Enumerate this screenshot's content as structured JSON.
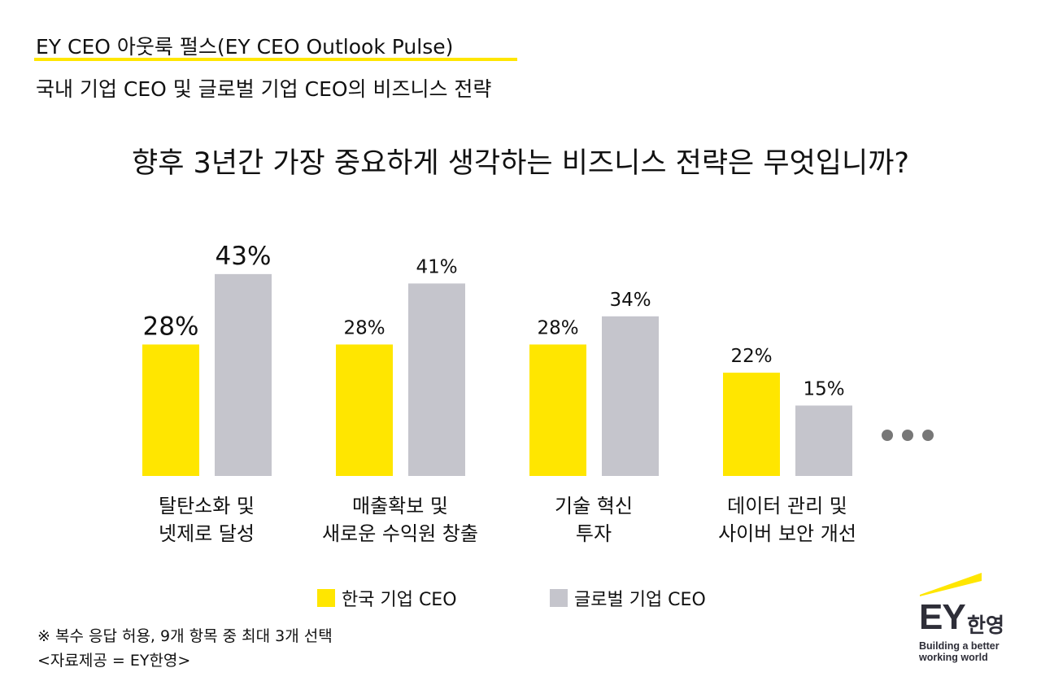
{
  "header": {
    "title": "EY CEO 아웃룩 펄스(EY CEO Outlook Pulse)",
    "subtitle": "국내 기업 CEO 및 글로벌 기업 CEO의 비즈니스 전략"
  },
  "question": "향후 3년간 가장 중요하게 생각하는 비즈니스 전략은 무엇입니까?",
  "colors": {
    "korea": "#ffe600",
    "global": "#c5c5cc",
    "accent_underline": "#ffe600",
    "brand_dark": "#2e2e38"
  },
  "chart_data": {
    "type": "bar",
    "categories": [
      "탈탄소화 및\n넷제로 달성",
      "매출확보 및\n새로운 수익원 창출",
      "기술 혁신\n투자",
      "데이터 관리 및\n사이버 보안 개선"
    ],
    "series": [
      {
        "name": "한국 기업 CEO",
        "values": [
          28,
          28,
          28,
          22
        ],
        "labels": [
          "28%",
          "28%",
          "28%",
          "22%"
        ]
      },
      {
        "name": "글로벌 기업 CEO",
        "values": [
          43,
          41,
          34,
          15
        ],
        "labels": [
          "43%",
          "41%",
          "34%",
          "15%"
        ]
      }
    ],
    "ylim": [
      0,
      45
    ],
    "grid": false,
    "legend_position": "bottom",
    "more_indicator": "•••"
  },
  "legend": {
    "korea": "한국 기업 CEO",
    "global": "글로벌 기업 CEO"
  },
  "notes": {
    "multiple": "※ 복수 응답 허용, 9개 항목 중 최대 3개 선택",
    "source": "<자료제공 = EY한영>"
  },
  "logo": {
    "mark": "EY",
    "korean": "한영",
    "tagline_1": "Building a better",
    "tagline_2": "working world"
  }
}
